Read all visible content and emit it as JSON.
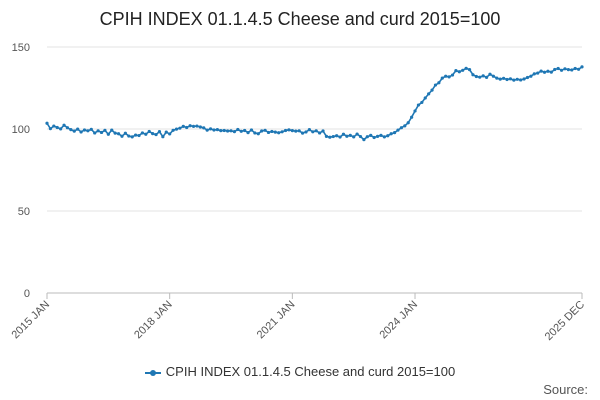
{
  "chart_data": {
    "type": "line",
    "title": "CPIH INDEX 01.1.4.5 Cheese and curd 2015=100",
    "xlabel": "",
    "ylabel": "",
    "ylim": [
      0,
      150
    ],
    "yticks": [
      0,
      50,
      100,
      150
    ],
    "x_tick_labels": [
      "2015 JAN",
      "2018 JAN",
      "2021 JAN",
      "2024 JAN",
      "2025 DEC"
    ],
    "x_range": [
      "2015 JAN",
      "2025 DEC"
    ],
    "grid": "horizontal",
    "legend_position": "bottom",
    "series": [
      {
        "name": "CPIH INDEX 01.1.4.5 Cheese and curd 2015=100",
        "color": "#1f77b4",
        "values": [
          103.5,
          100.2,
          101.8,
          100.9,
          100.1,
          102.3,
          100.8,
          99.6,
          98.7,
          99.9,
          98.2,
          99.4,
          98.9,
          99.8,
          97.6,
          98.9,
          97.9,
          99.2,
          96.8,
          99.3,
          97.5,
          97.1,
          95.6,
          97.4,
          95.7,
          95.2,
          96.3,
          96.0,
          97.6,
          96.8,
          98.5,
          97.2,
          96.6,
          98.4,
          95.3,
          98.1,
          97.0,
          99.2,
          99.9,
          100.5,
          101.6,
          100.9,
          102.0,
          101.6,
          101.8,
          101.2,
          100.7,
          99.3,
          100.1,
          99.4,
          99.6,
          99.0,
          99.1,
          98.8,
          98.9,
          98.4,
          99.7,
          98.6,
          99.1,
          97.8,
          99.4,
          97.6,
          97.1,
          98.8,
          99.2,
          97.9,
          98.5,
          98.1,
          97.7,
          98.3,
          99.1,
          99.5,
          99.0,
          98.7,
          98.9,
          97.5,
          98.2,
          99.6,
          98.3,
          98.9,
          97.6,
          98.8,
          95.5,
          95.0,
          95.4,
          95.9,
          95.1,
          96.8,
          95.6,
          96.1,
          95.2,
          96.9,
          95.4,
          93.5,
          95.3,
          96.1,
          94.8,
          95.5,
          96.1,
          95.2,
          95.9,
          97.1,
          97.8,
          99.3,
          100.8,
          101.9,
          103.8,
          107.2,
          111.0,
          114.6,
          116.2,
          118.9,
          121.4,
          123.7,
          126.8,
          128.2,
          131.0,
          132.2,
          131.8,
          132.9,
          135.6,
          134.9,
          135.8,
          137.0,
          136.2,
          133.1,
          132.0,
          131.6,
          132.4,
          131.5,
          133.4,
          132.2,
          131.0,
          130.4,
          130.9,
          130.2,
          130.6,
          129.8,
          130.3,
          129.9,
          130.5,
          131.4,
          132.2,
          133.6,
          134.1,
          135.3,
          134.6,
          135.2,
          134.7,
          136.3,
          136.9,
          135.8,
          136.7,
          136.2,
          136.0,
          136.9,
          136.4,
          137.9
        ]
      }
    ]
  },
  "source_label": "Source:"
}
